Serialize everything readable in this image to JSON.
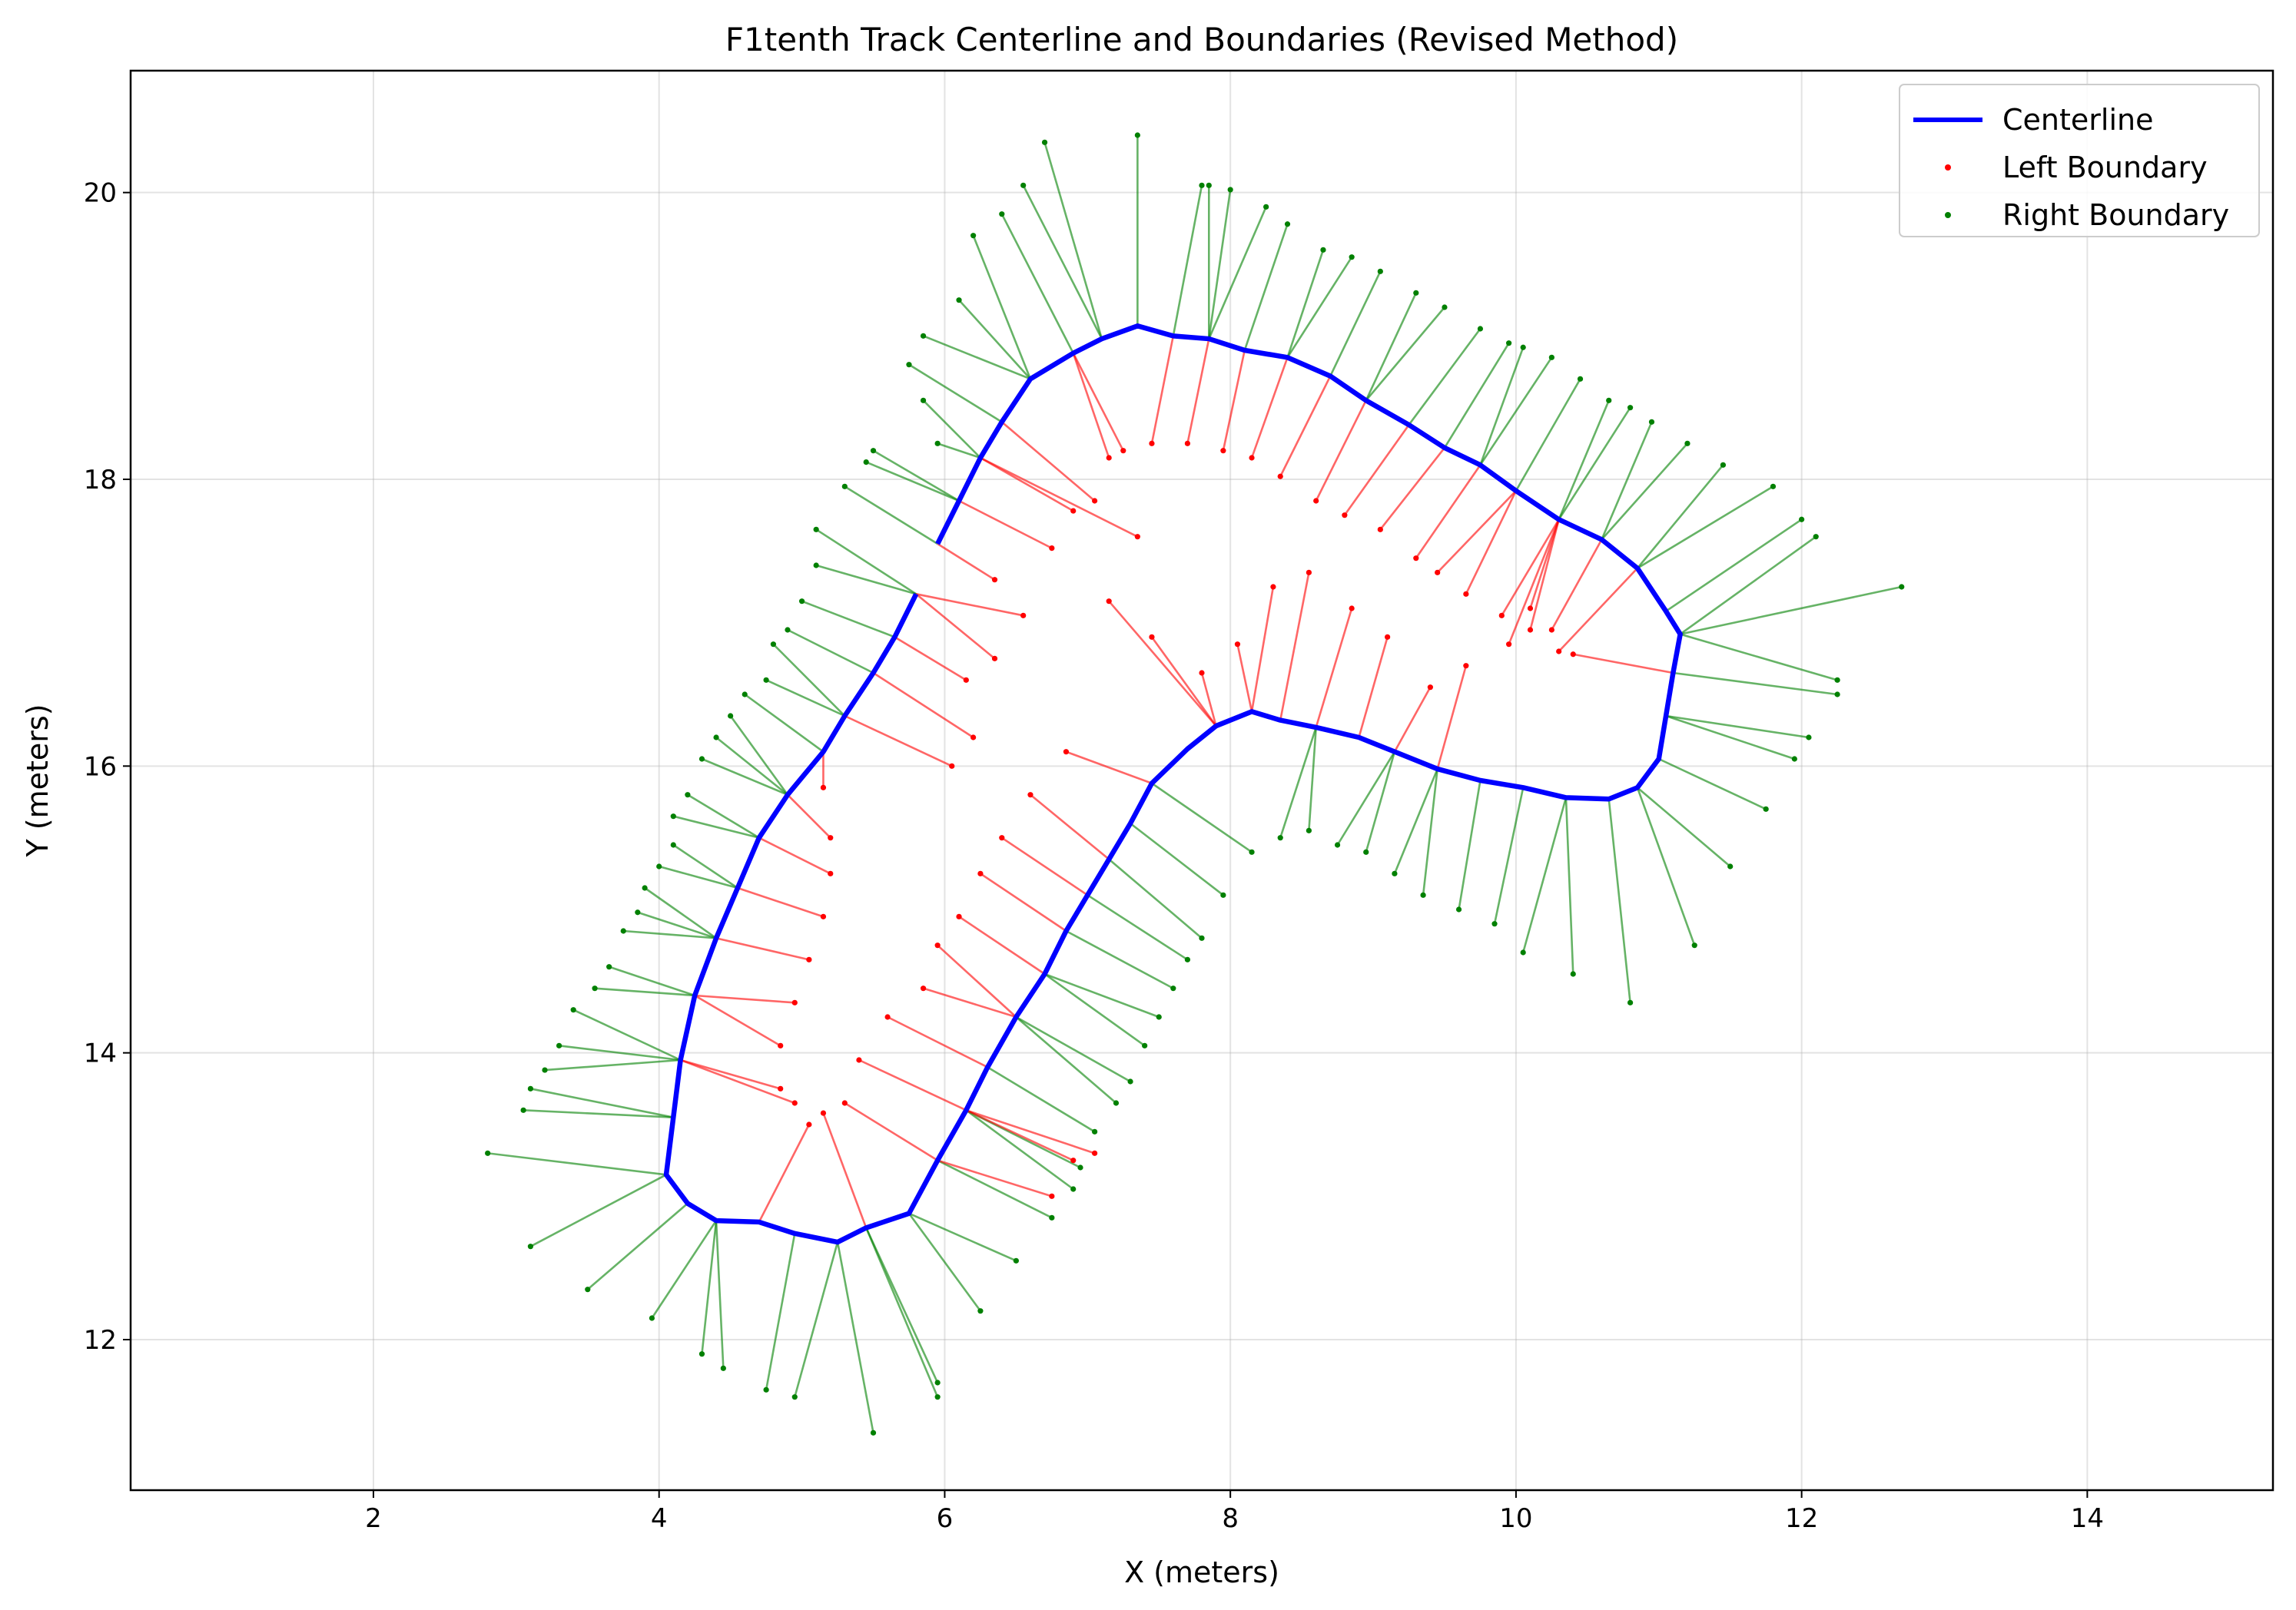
{
  "chart_data": {
    "type": "line",
    "title": "F1tenth Track Centerline and Boundaries (Revised Method)",
    "xlabel": "X (meters)",
    "ylabel": "Y (meters)",
    "xlim": [
      0.3,
      15.3
    ],
    "ylim": [
      10.95,
      20.85
    ],
    "xticks": [
      2,
      4,
      6,
      8,
      10,
      12,
      14
    ],
    "yticks": [
      12,
      14,
      16,
      18,
      20
    ],
    "grid": true,
    "legend_position": "top-right",
    "legend": [
      "Centerline",
      "Left Boundary",
      "Right Boundary"
    ],
    "colors": {
      "centerline": "#0000ff",
      "left": "#ff0000",
      "right": "#008000"
    },
    "series": [
      {
        "name": "Centerline",
        "points": [
          [
            5.95,
            17.55
          ],
          [
            6.1,
            17.85
          ],
          [
            6.25,
            18.15
          ],
          [
            6.4,
            18.4
          ],
          [
            6.6,
            18.7
          ],
          [
            6.9,
            18.88
          ],
          [
            7.1,
            18.98
          ],
          [
            7.35,
            19.07
          ],
          [
            7.6,
            19.0
          ],
          [
            7.85,
            18.98
          ],
          [
            8.1,
            18.9
          ],
          [
            8.4,
            18.85
          ],
          [
            8.7,
            18.72
          ],
          [
            8.95,
            18.55
          ],
          [
            9.25,
            18.38
          ],
          [
            9.5,
            18.22
          ],
          [
            9.75,
            18.1
          ],
          [
            10.0,
            17.92
          ],
          [
            10.3,
            17.72
          ],
          [
            10.6,
            17.58
          ],
          [
            10.85,
            17.38
          ],
          [
            11.05,
            17.08
          ],
          [
            11.15,
            16.92
          ],
          [
            11.1,
            16.65
          ],
          [
            11.05,
            16.35
          ],
          [
            11.0,
            16.05
          ],
          [
            10.85,
            15.85
          ],
          [
            10.65,
            15.77
          ],
          [
            10.35,
            15.78
          ],
          [
            10.05,
            15.85
          ],
          [
            9.75,
            15.9
          ],
          [
            9.45,
            15.98
          ],
          [
            9.15,
            16.1
          ],
          [
            8.9,
            16.2
          ],
          [
            8.6,
            16.27
          ],
          [
            8.35,
            16.32
          ],
          [
            8.15,
            16.38
          ],
          [
            7.9,
            16.28
          ],
          [
            7.7,
            16.12
          ],
          [
            7.45,
            15.88
          ],
          [
            7.3,
            15.6
          ],
          [
            7.15,
            15.35
          ],
          [
            7.0,
            15.1
          ],
          [
            6.85,
            14.85
          ],
          [
            6.7,
            14.55
          ],
          [
            6.5,
            14.25
          ],
          [
            6.3,
            13.9
          ],
          [
            6.15,
            13.6
          ],
          [
            5.95,
            13.25
          ],
          [
            5.75,
            12.88
          ],
          [
            5.45,
            12.78
          ],
          [
            5.25,
            12.68
          ],
          [
            4.95,
            12.74
          ],
          [
            4.7,
            12.82
          ],
          [
            4.4,
            12.83
          ],
          [
            4.2,
            12.95
          ],
          [
            4.05,
            13.15
          ],
          [
            4.1,
            13.55
          ],
          [
            4.15,
            13.95
          ],
          [
            4.25,
            14.4
          ],
          [
            4.4,
            14.8
          ],
          [
            4.55,
            15.15
          ],
          [
            4.7,
            15.5
          ],
          [
            4.9,
            15.8
          ],
          [
            5.15,
            16.1
          ],
          [
            5.3,
            16.35
          ],
          [
            5.5,
            16.65
          ],
          [
            5.65,
            16.9
          ],
          [
            5.8,
            17.2
          ]
        ]
      },
      {
        "name": "Left Boundary",
        "points": [
          [
            6.35,
            17.3
          ],
          [
            6.55,
            17.05
          ],
          [
            6.75,
            17.52
          ],
          [
            6.9,
            17.78
          ],
          [
            7.05,
            17.85
          ],
          [
            7.15,
            18.15
          ],
          [
            7.25,
            18.2
          ],
          [
            7.45,
            18.25
          ],
          [
            7.7,
            18.25
          ],
          [
            7.95,
            18.2
          ],
          [
            8.15,
            18.15
          ],
          [
            8.35,
            18.02
          ],
          [
            8.6,
            17.85
          ],
          [
            8.8,
            17.75
          ],
          [
            9.05,
            17.65
          ],
          [
            9.3,
            17.45
          ],
          [
            9.45,
            17.35
          ],
          [
            9.65,
            17.2
          ],
          [
            9.9,
            17.05
          ],
          [
            10.1,
            16.95
          ],
          [
            10.3,
            16.8
          ],
          [
            10.4,
            16.78
          ],
          [
            10.25,
            16.95
          ],
          [
            10.1,
            17.1
          ],
          [
            9.95,
            16.85
          ],
          [
            9.65,
            16.7
          ],
          [
            9.4,
            16.55
          ],
          [
            9.1,
            16.9
          ],
          [
            8.85,
            17.1
          ],
          [
            8.55,
            17.35
          ],
          [
            8.3,
            17.25
          ],
          [
            8.05,
            16.85
          ],
          [
            7.8,
            16.65
          ],
          [
            7.45,
            16.9
          ],
          [
            7.15,
            17.15
          ],
          [
            7.35,
            17.6
          ],
          [
            6.85,
            16.1
          ],
          [
            6.6,
            15.8
          ],
          [
            6.4,
            15.5
          ],
          [
            6.25,
            15.25
          ],
          [
            6.1,
            14.95
          ],
          [
            5.95,
            14.75
          ],
          [
            5.85,
            14.45
          ],
          [
            5.6,
            14.25
          ],
          [
            5.4,
            13.95
          ],
          [
            5.3,
            13.65
          ],
          [
            5.15,
            13.58
          ],
          [
            5.05,
            13.5
          ],
          [
            4.95,
            13.65
          ],
          [
            4.85,
            13.75
          ],
          [
            4.85,
            14.05
          ],
          [
            4.95,
            14.35
          ],
          [
            5.05,
            14.65
          ],
          [
            5.15,
            14.95
          ],
          [
            5.2,
            15.25
          ],
          [
            5.2,
            15.5
          ],
          [
            5.15,
            15.85
          ],
          [
            6.05,
            16.0
          ],
          [
            6.2,
            16.2
          ],
          [
            6.15,
            16.6
          ],
          [
            6.35,
            16.75
          ],
          [
            6.9,
            13.25
          ],
          [
            6.75,
            13.0
          ],
          [
            7.05,
            13.3
          ]
        ]
      },
      {
        "name": "Right Boundary",
        "points": [
          [
            5.95,
            18.25
          ],
          [
            5.85,
            18.55
          ],
          [
            5.75,
            18.8
          ],
          [
            5.85,
            19.0
          ],
          [
            6.1,
            19.25
          ],
          [
            6.2,
            19.7
          ],
          [
            6.4,
            19.85
          ],
          [
            6.55,
            20.05
          ],
          [
            6.7,
            20.35
          ],
          [
            7.35,
            20.4
          ],
          [
            7.8,
            20.05
          ],
          [
            7.85,
            20.05
          ],
          [
            8.0,
            20.02
          ],
          [
            8.25,
            19.9
          ],
          [
            8.4,
            19.78
          ],
          [
            8.65,
            19.6
          ],
          [
            8.85,
            19.55
          ],
          [
            9.05,
            19.45
          ],
          [
            9.3,
            19.3
          ],
          [
            9.5,
            19.2
          ],
          [
            9.75,
            19.05
          ],
          [
            9.95,
            18.95
          ],
          [
            10.05,
            18.92
          ],
          [
            10.25,
            18.85
          ],
          [
            10.45,
            18.7
          ],
          [
            10.65,
            18.55
          ],
          [
            10.8,
            18.5
          ],
          [
            10.95,
            18.4
          ],
          [
            11.2,
            18.25
          ],
          [
            11.45,
            18.1
          ],
          [
            11.8,
            17.95
          ],
          [
            12.0,
            17.72
          ],
          [
            12.1,
            17.6
          ],
          [
            12.7,
            17.25
          ],
          [
            12.25,
            16.6
          ],
          [
            12.25,
            16.5
          ],
          [
            12.05,
            16.2
          ],
          [
            11.95,
            16.05
          ],
          [
            11.75,
            15.7
          ],
          [
            11.5,
            15.3
          ],
          [
            11.25,
            14.75
          ],
          [
            10.8,
            14.35
          ],
          [
            10.4,
            14.55
          ],
          [
            10.05,
            14.7
          ],
          [
            9.85,
            14.9
          ],
          [
            9.6,
            15.0
          ],
          [
            9.35,
            15.1
          ],
          [
            9.15,
            15.25
          ],
          [
            8.95,
            15.4
          ],
          [
            8.75,
            15.45
          ],
          [
            8.55,
            15.55
          ],
          [
            8.35,
            15.5
          ],
          [
            8.15,
            15.4
          ],
          [
            7.95,
            15.1
          ],
          [
            7.8,
            14.8
          ],
          [
            7.7,
            14.65
          ],
          [
            7.6,
            14.45
          ],
          [
            7.5,
            14.25
          ],
          [
            7.4,
            14.05
          ],
          [
            7.3,
            13.8
          ],
          [
            7.2,
            13.65
          ],
          [
            7.05,
            13.45
          ],
          [
            6.95,
            13.2
          ],
          [
            6.9,
            13.05
          ],
          [
            6.75,
            12.85
          ],
          [
            6.5,
            12.55
          ],
          [
            6.25,
            12.2
          ],
          [
            5.95,
            11.6
          ],
          [
            5.95,
            11.7
          ],
          [
            5.5,
            11.35
          ],
          [
            4.95,
            11.6
          ],
          [
            4.75,
            11.65
          ],
          [
            4.45,
            11.8
          ],
          [
            4.3,
            11.9
          ],
          [
            3.95,
            12.15
          ],
          [
            3.5,
            12.35
          ],
          [
            3.1,
            12.65
          ],
          [
            2.8,
            13.3
          ],
          [
            3.05,
            13.6
          ],
          [
            3.1,
            13.75
          ],
          [
            3.2,
            13.88
          ],
          [
            3.3,
            14.05
          ],
          [
            3.4,
            14.3
          ],
          [
            3.55,
            14.45
          ],
          [
            3.65,
            14.6
          ],
          [
            3.75,
            14.85
          ],
          [
            3.85,
            14.98
          ],
          [
            3.9,
            15.15
          ],
          [
            4.0,
            15.3
          ],
          [
            4.1,
            15.45
          ],
          [
            4.1,
            15.65
          ],
          [
            4.2,
            15.8
          ],
          [
            4.3,
            16.05
          ],
          [
            4.4,
            16.2
          ],
          [
            4.5,
            16.35
          ],
          [
            4.6,
            16.5
          ],
          [
            4.75,
            16.6
          ],
          [
            4.8,
            16.85
          ],
          [
            4.9,
            16.95
          ],
          [
            5.0,
            17.15
          ],
          [
            5.1,
            17.4
          ],
          [
            5.1,
            17.65
          ],
          [
            5.3,
            17.95
          ],
          [
            5.45,
            18.12
          ],
          [
            5.5,
            18.2
          ]
        ]
      }
    ]
  }
}
